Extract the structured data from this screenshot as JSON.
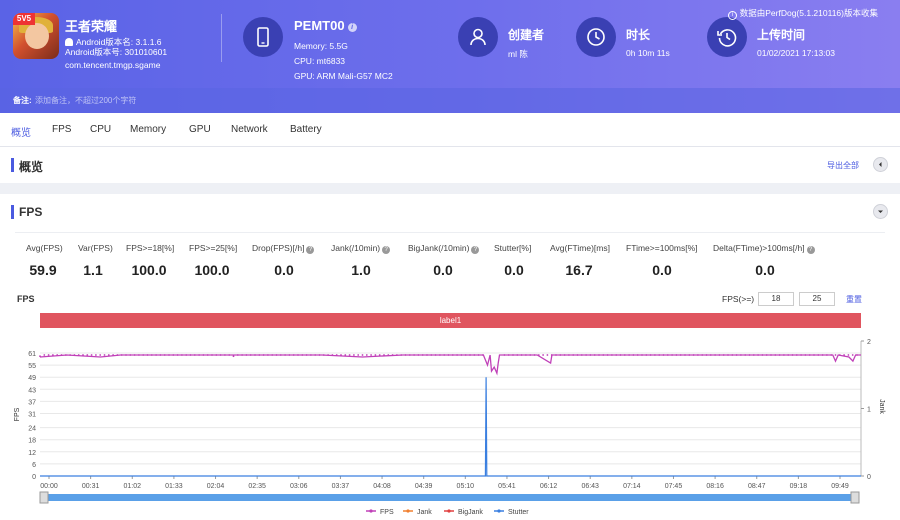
{
  "app": {
    "name": "王者荣耀",
    "icon_badge": "5V5",
    "version_name": "Android版本名: 3.1.1.6",
    "version_code": "Android版本号: 301010601",
    "package": "com.tencent.tmgp.sgame"
  },
  "device": {
    "name": "PEMT00",
    "info_icon": "i",
    "memory": "Memory: 5.5G",
    "cpu": "CPU: mt6833",
    "gpu": "GPU: ARM Mali-G57 MC2"
  },
  "creator": {
    "title": "创建者",
    "value": "ml 陈"
  },
  "duration": {
    "title": "时长",
    "value": "0h 10m 11s"
  },
  "upload": {
    "title": "上传时间",
    "value": "01/02/2021 17:13:03"
  },
  "collected_by": "数据由PerfDog(5.1.210116)版本收集",
  "note": {
    "label": "备注:",
    "placeholder": "添加备注，不超过200个字符"
  },
  "tabs": [
    "概览",
    "FPS",
    "CPU",
    "Memory",
    "GPU",
    "Network",
    "Battery"
  ],
  "overview": {
    "title": "概览",
    "export": "导出全部"
  },
  "fps_section": {
    "title": "FPS",
    "help_glyph": "?",
    "stats": [
      {
        "label": "Avg(FPS)",
        "value": "59.9",
        "help": false
      },
      {
        "label": "Var(FPS)",
        "value": "1.1",
        "help": false
      },
      {
        "label": "FPS>=18[%]",
        "value": "100.0",
        "help": false
      },
      {
        "label": "FPS>=25[%]",
        "value": "100.0",
        "help": false
      },
      {
        "label": "Drop(FPS)[/h]",
        "value": "0.0",
        "help": true
      },
      {
        "label": "Jank(/10min)",
        "value": "1.0",
        "help": true
      },
      {
        "label": "BigJank(/10min)",
        "value": "0.0",
        "help": true
      },
      {
        "label": "Stutter[%]",
        "value": "0.0",
        "help": false
      },
      {
        "label": "Avg(FTime)[ms]",
        "value": "16.7",
        "help": false
      },
      {
        "label": "FTime>=100ms[%]",
        "value": "0.0",
        "help": false
      },
      {
        "label": "Delta(FTime)>100ms[/h]",
        "value": "0.0",
        "help": true
      }
    ],
    "chart_title": "FPS",
    "threshold_label": "FPS(>=)",
    "threshold_1": "18",
    "threshold_2": "25",
    "reset": "重置",
    "label_bar": "label1"
  },
  "chart_data": {
    "type": "line",
    "title": "FPS",
    "ylabel": "FPS",
    "y2label": "Jank",
    "ylim": [
      0,
      61
    ],
    "y2lim": [
      0,
      2
    ],
    "yticks": [
      0,
      6,
      12,
      18,
      24,
      31,
      37,
      43,
      49,
      55,
      61
    ],
    "y2ticks": [
      0,
      1,
      2
    ],
    "xticks": [
      "00:00",
      "00:31",
      "01:02",
      "01:33",
      "02:04",
      "02:35",
      "03:06",
      "03:37",
      "04:08",
      "04:39",
      "05:10",
      "05:41",
      "06:12",
      "06:43",
      "07:14",
      "07:45",
      "08:16",
      "08:47",
      "09:18",
      "09:49"
    ],
    "x_range_s": [
      0,
      611
    ],
    "series": [
      {
        "name": "FPS",
        "color": "#c040b8",
        "points": [
          [
            0,
            59
          ],
          [
            20,
            60
          ],
          [
            45,
            59
          ],
          [
            60,
            60
          ],
          [
            90,
            60
          ],
          [
            120,
            60
          ],
          [
            150,
            60
          ],
          [
            180,
            60
          ],
          [
            210,
            60
          ],
          [
            240,
            59
          ],
          [
            270,
            60
          ],
          [
            300,
            60
          ],
          [
            330,
            60
          ],
          [
            333,
            55
          ],
          [
            335,
            60
          ],
          [
            336,
            52
          ],
          [
            338,
            54
          ],
          [
            340,
            51
          ],
          [
            341,
            56
          ],
          [
            342,
            60
          ],
          [
            370,
            60
          ],
          [
            380,
            56
          ],
          [
            381,
            60
          ],
          [
            410,
            60
          ],
          [
            440,
            60
          ],
          [
            470,
            60
          ],
          [
            500,
            60
          ],
          [
            530,
            60
          ],
          [
            560,
            60
          ],
          [
            590,
            60
          ],
          [
            592,
            57
          ],
          [
            594,
            60
          ],
          [
            602,
            59
          ],
          [
            605,
            57
          ],
          [
            607,
            60
          ],
          [
            611,
            60
          ]
        ]
      },
      {
        "name": "Jank",
        "color": "#f08030",
        "points": []
      },
      {
        "name": "BigJank",
        "color": "#e04040",
        "points": []
      },
      {
        "name": "Stutter",
        "color": "#3a7fe0",
        "points": [
          [
            0,
            0
          ],
          [
            331.5,
            0
          ],
          [
            332,
            49
          ],
          [
            332.5,
            0
          ],
          [
            611,
            0
          ]
        ]
      }
    ],
    "legend": "bottom-center"
  }
}
